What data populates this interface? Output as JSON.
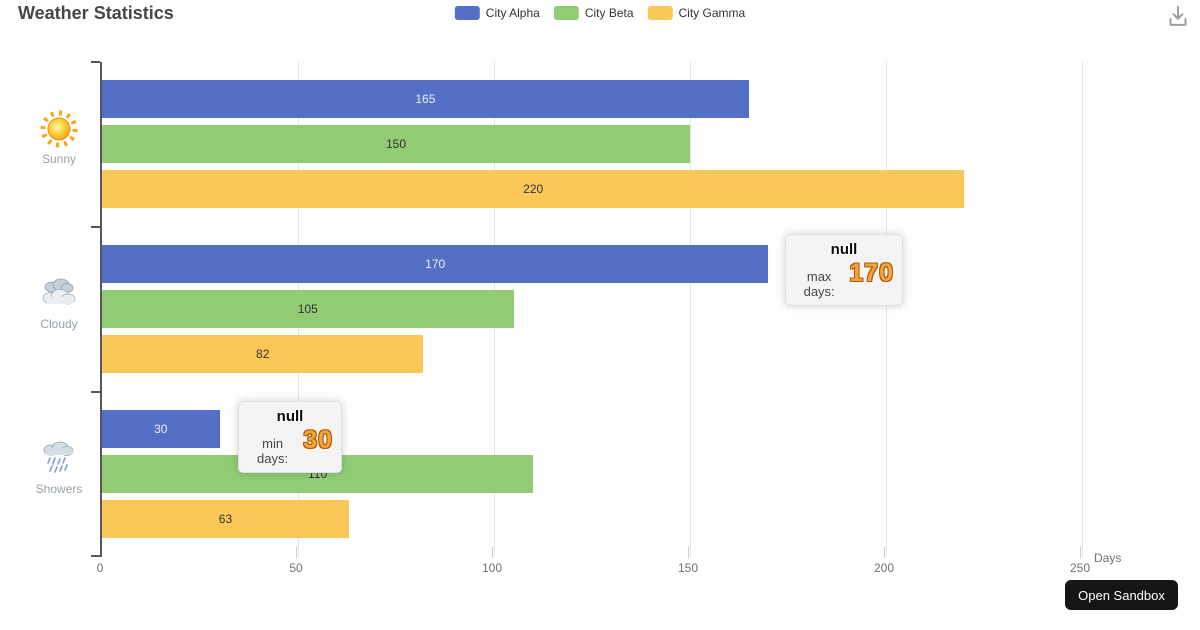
{
  "title": "Weather Statistics",
  "chart_data": {
    "type": "bar",
    "orientation": "horizontal",
    "title": "Weather Statistics",
    "categories": [
      "Sunny",
      "Cloudy",
      "Showers"
    ],
    "category_icons": [
      "sun-icon",
      "clouds-icon",
      "rain-cloud-icon"
    ],
    "series": [
      {
        "name": "City Alpha",
        "color": "#5470C6",
        "label_color": "#EDEDED",
        "values": [
          165,
          170,
          30
        ]
      },
      {
        "name": "City Beta",
        "color": "#91CC75",
        "label_color": "#333333",
        "values": [
          150,
          105,
          110
        ]
      },
      {
        "name": "City Gamma",
        "color": "#FAC858",
        "label_color": "#333333",
        "values": [
          220,
          82,
          63
        ]
      }
    ],
    "xlabel": "Days",
    "x_ticks": [
      0,
      50,
      100,
      150,
      200,
      250
    ],
    "xlim": [
      0,
      250
    ],
    "grid": true,
    "legend_position": "top-center",
    "value_labels": "inside-center"
  },
  "annotations": {
    "max": {
      "title": "null",
      "label": "max days:",
      "value": 170,
      "value_color": "#F5A33C"
    },
    "min": {
      "title": "null",
      "label": "min days:",
      "value": 30,
      "value_color": "#F5A33C"
    }
  },
  "footer": {
    "open_sandbox_label": "Open Sandbox"
  }
}
